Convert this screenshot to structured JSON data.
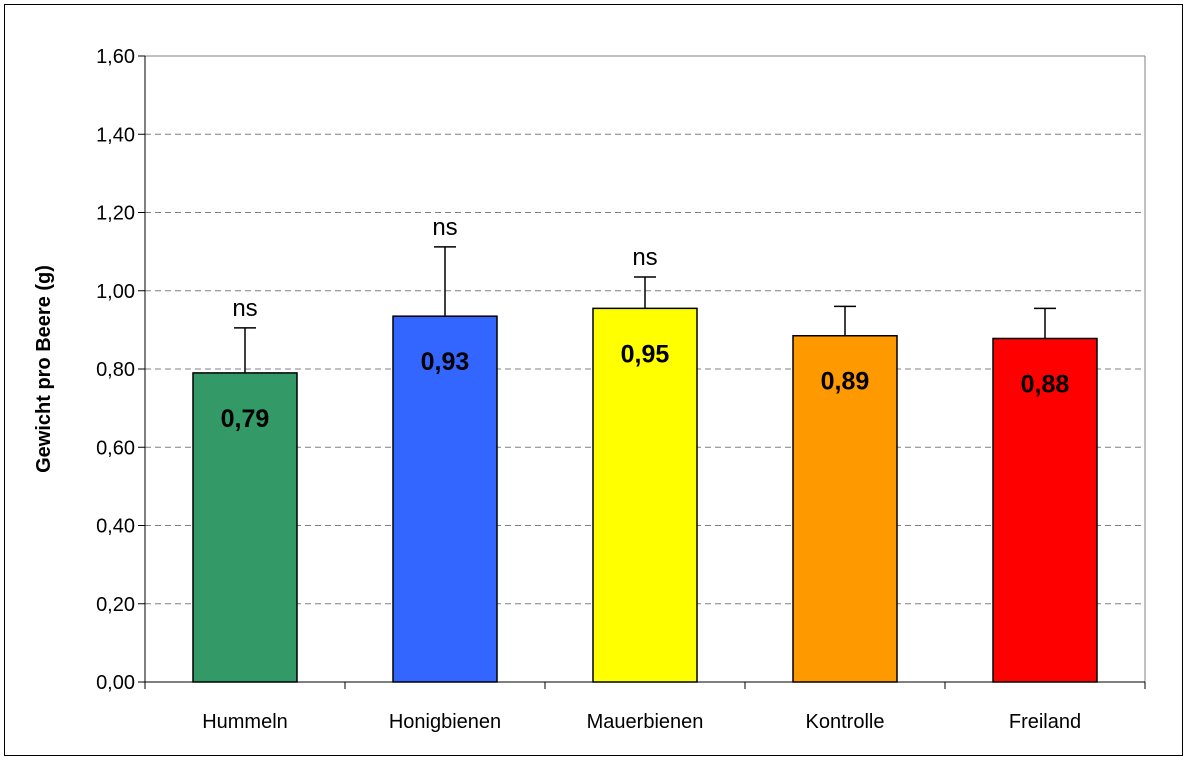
{
  "chart_data": {
    "type": "bar",
    "title": "",
    "xlabel": "",
    "ylabel": "Gewicht pro Beere (g)",
    "ylim": [
      0,
      1.6
    ],
    "yticks": [
      "0,00",
      "0,20",
      "0,40",
      "0,60",
      "0,80",
      "1,00",
      "1,20",
      "1,40",
      "1,60"
    ],
    "grid": true,
    "categories": [
      "Hummeln",
      "Honigbienen",
      "Mauerbienen",
      "Kontrolle",
      "Freiland"
    ],
    "values": [
      0.79,
      0.935,
      0.955,
      0.885,
      0.878
    ],
    "error_upper": [
      0.905,
      1.112,
      1.035,
      0.96,
      0.955
    ],
    "data_labels": [
      "0,79",
      "0,93",
      "0,95",
      "0,89",
      "0,88"
    ],
    "significance": [
      "ns",
      "ns",
      "ns",
      "",
      ""
    ],
    "colors": [
      "#339966",
      "#3366FF",
      "#FFFF00",
      "#FF9900",
      "#FF0000"
    ]
  }
}
